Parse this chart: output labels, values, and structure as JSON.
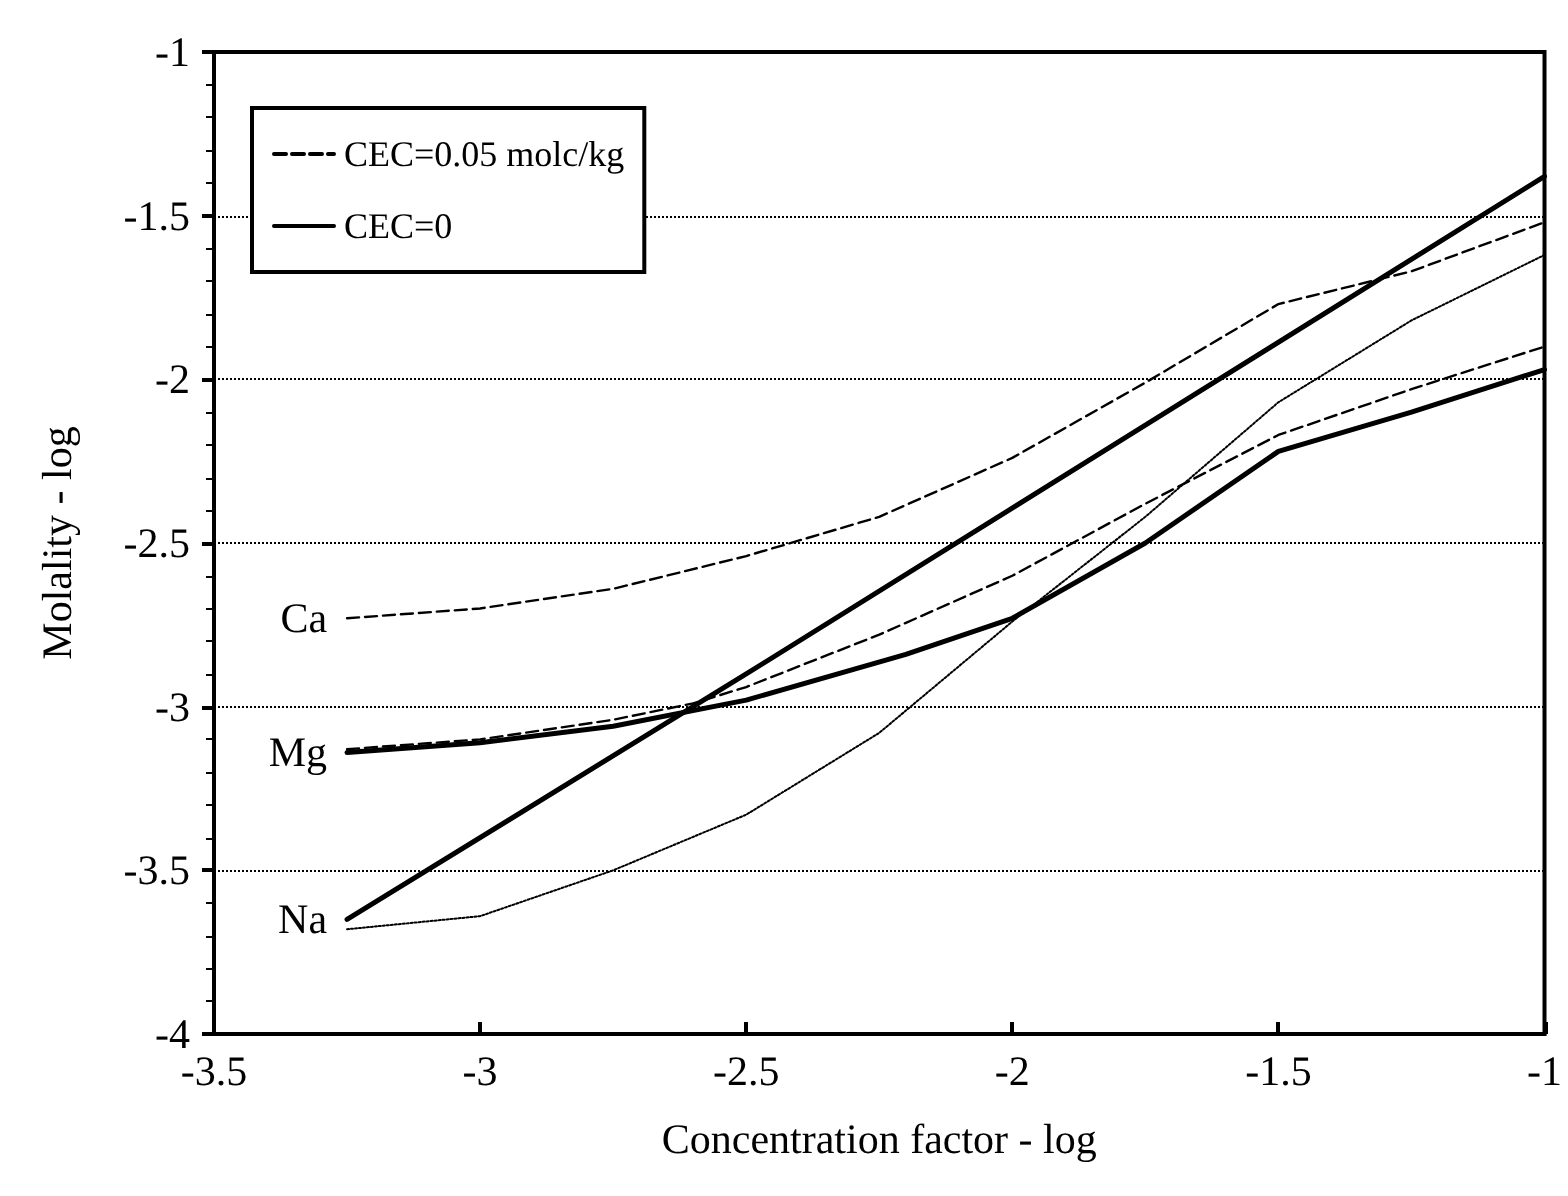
{
  "chart_data": {
    "type": "line",
    "xlabel": "Concentration factor - log",
    "ylabel": "Molality - log",
    "xlim": [
      -3.5,
      -1
    ],
    "xticks": [
      -3.5,
      -3,
      -2.5,
      -2,
      -1.5,
      -1
    ],
    "ylim": [
      -4,
      -1
    ],
    "yticks": [
      -4,
      -3.5,
      -3,
      -2.5,
      -2,
      -1.5,
      -1
    ],
    "grid": "y",
    "legend": "top left",
    "marker": "none",
    "series": [
      {
        "name": "CEC=0.05 molc/kg",
        "color": "#000000",
        "line_style": "dashed",
        "x": [
          -3.25,
          -3,
          -2.75,
          -2.5,
          -2.25,
          -2,
          -1.75,
          -1.5,
          -1.25,
          -1
        ],
        "values": [
          -2.73,
          -2.7,
          -2.64,
          -2.54,
          -2.42,
          -2.24,
          -2.01,
          -1.77,
          -1.67,
          -1.52
        ]
      },
      {
        "name": "CEC=0",
        "color": "#000000",
        "line_style": "solid",
        "x": [
          -3.25,
          -3,
          -2.75,
          -2.5,
          -2.2,
          -2,
          -1.75,
          -1.5,
          -1.25,
          -1
        ],
        "values": [
          -3.14,
          -3.11,
          -3.06,
          -2.98,
          -2.84,
          -2.73,
          -2.5,
          -2.22,
          -2.1,
          -1.97
        ]
      },
      {
        "color": "#000000",
        "line_style": "solid",
        "x": [
          -3.25,
          -2.5,
          -1.75,
          -1
        ],
        "values": [
          -3.65,
          -2.9,
          -2.14,
          -1.38
        ]
      },
      {
        "color": "#000000",
        "line_style": "dotted",
        "x": [
          -3.25,
          -3,
          -2.75,
          -2.5,
          -2.25,
          -2,
          -1.75,
          -1.5,
          -1.25,
          -1
        ],
        "values": [
          -3.68,
          -3.64,
          -3.5,
          -3.33,
          -3.08,
          -2.74,
          -2.42,
          -2.07,
          -1.82,
          -1.62
        ]
      },
      {
        "color": "#000000",
        "line_style": "dashed",
        "x": [
          -3.25,
          -3,
          -2.75,
          -2.6,
          -2.5,
          -2.25,
          -2,
          -1.75,
          -1.5,
          -1.25,
          -1
        ],
        "values": [
          -3.13,
          -3.1,
          -3.04,
          -2.99,
          -2.94,
          -2.78,
          -2.6,
          -2.38,
          -2.17,
          -2.03,
          -1.9
        ]
      }
    ],
    "annotations": [
      "Ca",
      "Mg",
      "Na"
    ]
  }
}
